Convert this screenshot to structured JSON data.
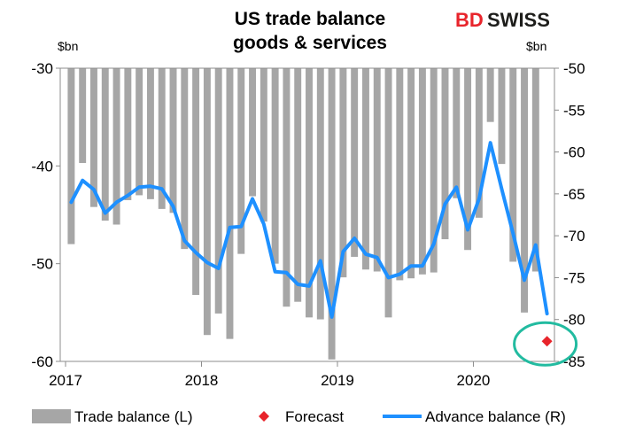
{
  "brand": {
    "part1": "BD",
    "part2": "SWISS",
    "color1": "#e8242b",
    "color2": "#1d1d1b"
  },
  "chart_data": {
    "type": "bar+line",
    "title": [
      "US trade balance",
      "goods & services"
    ],
    "left_unit": "$bn",
    "right_unit": "$bn",
    "left_axis": {
      "ylim": [
        -60,
        -30
      ],
      "ticks": [
        -30,
        -40,
        -50,
        -60
      ]
    },
    "right_axis": {
      "ylim": [
        -85,
        -50
      ],
      "ticks": [
        -50,
        -55,
        -60,
        -65,
        -70,
        -75,
        -80,
        -85
      ]
    },
    "x_labels": [
      {
        "label": "2017",
        "index": 0
      },
      {
        "label": "2018",
        "index": 12
      },
      {
        "label": "2019",
        "index": 24
      },
      {
        "label": "2020",
        "index": 36
      }
    ],
    "colors": {
      "bars": "#a6a6a6",
      "line": "#1e90ff",
      "forecast": "#e8242b",
      "circle": "#22bba0"
    },
    "series": [
      {
        "name": "Trade balance (L)",
        "kind": "bar",
        "axis": "left",
        "values": [
          -48.0,
          -39.7,
          -44.2,
          -45.6,
          -46.0,
          -43.5,
          -43.0,
          -43.4,
          -44.4,
          -44.8,
          -48.5,
          -53.2,
          -57.3,
          -55.1,
          -57.7,
          -49.0,
          -43.1,
          -45.7,
          -50.0,
          -54.4,
          -53.9,
          -55.5,
          -55.7,
          -59.8,
          -51.4,
          -49.3,
          -50.6,
          -50.8,
          -55.5,
          -51.7,
          -51.5,
          -51.1,
          -50.9,
          -47.5,
          -43.3,
          -48.6,
          -45.3,
          -35.5,
          -39.8,
          -49.8,
          -55.0,
          -50.8
        ]
      },
      {
        "name": "Advance balance (R)",
        "kind": "line",
        "axis": "right",
        "values": [
          -66.0,
          -63.4,
          -64.5,
          -67.3,
          -66.0,
          -65.2,
          -64.2,
          -64.1,
          -64.4,
          -66.5,
          -70.6,
          -72.0,
          -73.2,
          -73.9,
          -69.0,
          -68.9,
          -65.6,
          -68.6,
          -74.3,
          -74.4,
          -75.8,
          -76.0,
          -73.0,
          -79.7,
          -71.9,
          -70.3,
          -72.2,
          -72.6,
          -75.0,
          -74.6,
          -73.6,
          -73.6,
          -71.0,
          -66.2,
          -64.2,
          -69.3,
          -65.6,
          -58.9,
          -64.4,
          -69.7,
          -75.3,
          -71.1,
          -79.3
        ]
      },
      {
        "name": "Forecast",
        "kind": "marker",
        "axis": "right",
        "points": [
          {
            "index": 42,
            "value": -82.6
          }
        ]
      }
    ]
  }
}
